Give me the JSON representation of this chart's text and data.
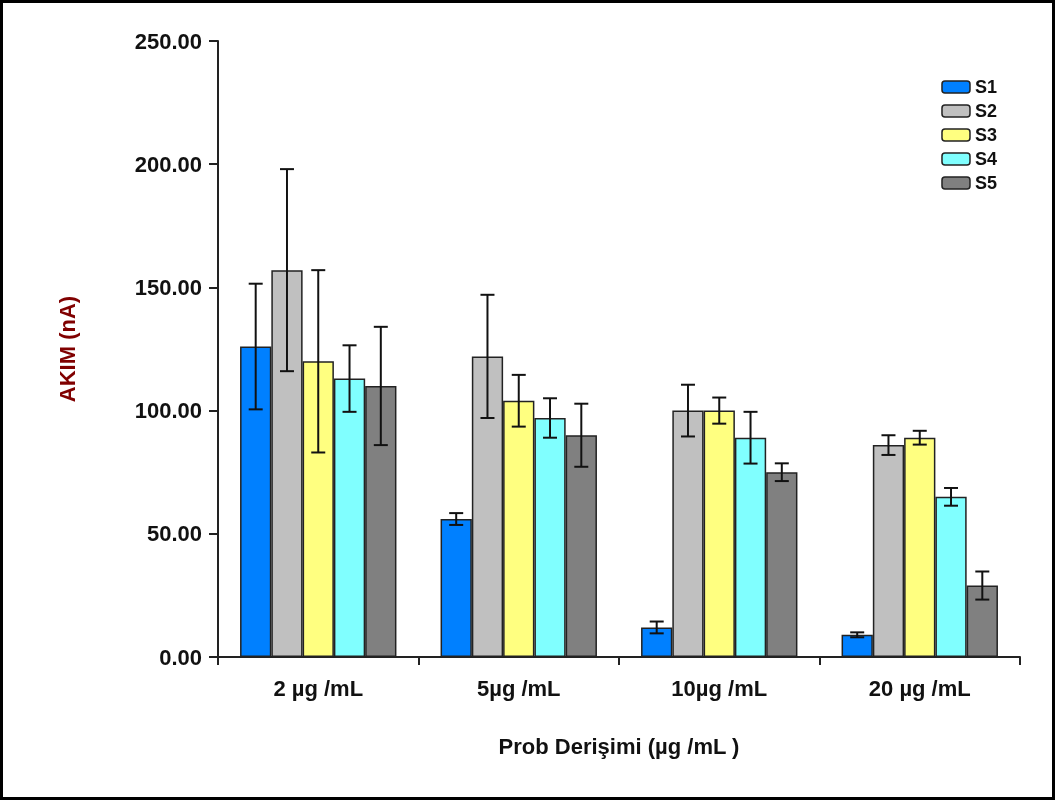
{
  "chart_data": {
    "type": "bar",
    "xlabel": "Prob Derişimi (µg /mL )",
    "ylabel": "AKIM (nA)",
    "categories": [
      "2 µg /mL",
      "5µg /mL",
      "10µg /mL",
      "20 µg /mL"
    ],
    "ylim": [
      0,
      250
    ],
    "yticks": [
      {
        "value": 0,
        "label": "0.00"
      },
      {
        "value": 50,
        "label": "50.00"
      },
      {
        "value": 100,
        "label": "100.00"
      },
      {
        "value": 150,
        "label": "150.00"
      },
      {
        "value": 200,
        "label": "200.00"
      },
      {
        "value": 250,
        "label": "250.00"
      }
    ],
    "grid": false,
    "legend": "top right",
    "series": [
      {
        "name": "S1",
        "color": "#0080ff",
        "values": [
          126,
          56,
          12,
          9
        ],
        "errors": [
          25.5,
          2.4,
          2.4,
          1
        ]
      },
      {
        "name": "S2",
        "color": "#c0c0c0",
        "values": [
          157,
          122,
          100,
          86
        ],
        "errors": [
          41,
          25,
          10.5,
          4
        ]
      },
      {
        "name": "S3",
        "color": "#ffff80",
        "values": [
          120,
          104,
          100,
          89
        ],
        "errors": [
          37,
          10.5,
          5.3,
          2.8
        ]
      },
      {
        "name": "S4",
        "color": "#80ffff",
        "values": [
          113,
          97,
          89,
          65
        ],
        "errors": [
          13.5,
          8,
          10.5,
          3.6
        ]
      },
      {
        "name": "S5",
        "color": "#808080",
        "values": [
          110,
          90,
          75,
          29
        ],
        "errors": [
          24,
          12.8,
          3.6,
          5.7
        ]
      }
    ]
  }
}
